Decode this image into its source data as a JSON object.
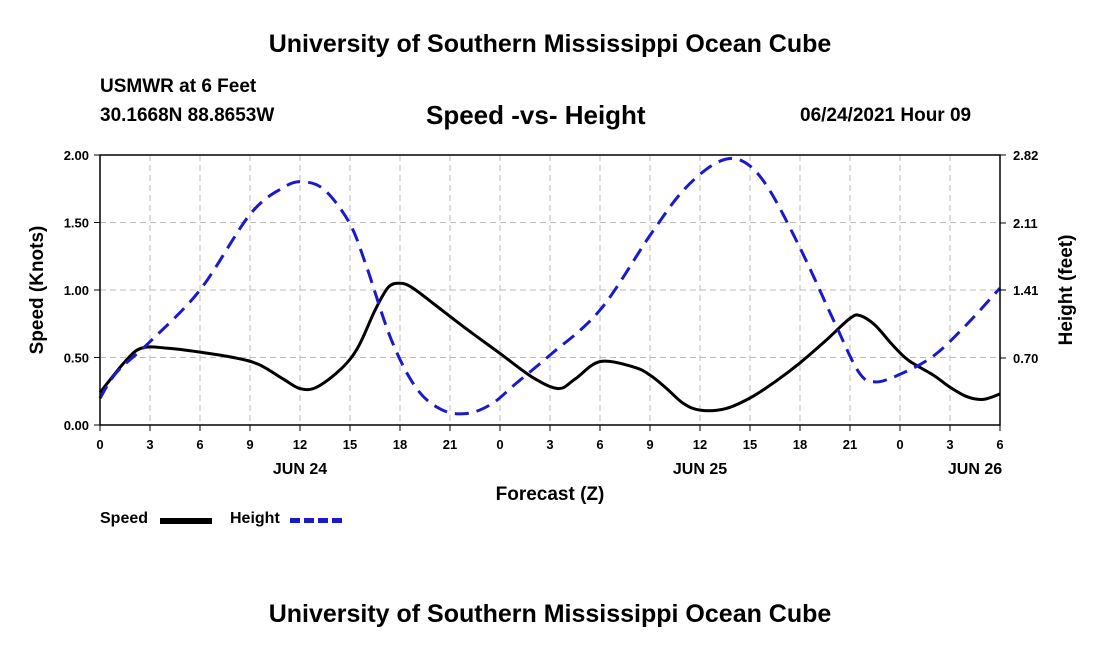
{
  "header": {
    "top_title": "University of Southern Mississippi Ocean Cube",
    "station": "USMWR at 6 Feet",
    "coords": "30.1668N  88.8653W",
    "chart_title": "Speed -vs- Height",
    "date_hour": "06/24/2021 Hour 09",
    "bottom_title": "University of Southern Mississippi Ocean Cube"
  },
  "legend": {
    "speed_label": "Speed",
    "height_label": "Height"
  },
  "colors": {
    "speed": "#000000",
    "height": "#1a1acc",
    "grid": "#bbbbbb"
  },
  "chart_data": {
    "type": "line",
    "title": "Speed -vs- Height",
    "xlabel": "Forecast (Z)",
    "ylabel": "Speed (Knots)",
    "ylabel_right": "Height (feet)",
    "x_range": [
      0,
      54
    ],
    "ylim": [
      0,
      2.0
    ],
    "ylim_right": [
      0,
      2.82
    ],
    "x_ticks": [
      0,
      3,
      6,
      9,
      12,
      15,
      18,
      21,
      24,
      27,
      30,
      33,
      36,
      39,
      42,
      45,
      48,
      51,
      54
    ],
    "x_tick_labels": [
      "0",
      "3",
      "6",
      "9",
      "12",
      "15",
      "18",
      "21",
      "0",
      "3",
      "6",
      "9",
      "12",
      "15",
      "18",
      "21",
      "0",
      "3",
      "6"
    ],
    "y_ticks": [
      0,
      0.5,
      1.0,
      1.5,
      2.0
    ],
    "y_tick_labels": [
      "0.00",
      "0.50",
      "1.00",
      "1.50",
      "2.00"
    ],
    "y_right_ticks": [
      0.7,
      1.41,
      2.11,
      2.82
    ],
    "y_right_tick_labels": [
      "0.70",
      "1.41",
      "2.11",
      "2.82"
    ],
    "day_labels": [
      {
        "x": 12,
        "label": "JUN 24"
      },
      {
        "x": 36,
        "label": "JUN 25"
      },
      {
        "x": 52.5,
        "label": "JUN 26"
      }
    ],
    "grid": true,
    "series": [
      {
        "name": "Speed",
        "axis": "left",
        "style": "solid",
        "x": [
          0,
          1.5,
          2.5,
          4,
          6,
          8,
          9.5,
          11,
          12,
          13,
          14.5,
          15.5,
          16.5,
          17.3,
          18,
          18.7,
          20,
          22,
          24,
          26,
          27.5,
          28.5,
          30,
          32,
          33,
          34,
          35,
          36,
          37.5,
          39,
          40.5,
          42,
          43.5,
          45,
          45.6,
          46.5,
          47.5,
          48.5,
          50,
          51,
          52,
          53,
          54
        ],
        "values": [
          0.24,
          0.47,
          0.57,
          0.57,
          0.54,
          0.5,
          0.45,
          0.34,
          0.27,
          0.28,
          0.42,
          0.58,
          0.85,
          1.02,
          1.05,
          1.02,
          0.9,
          0.71,
          0.53,
          0.35,
          0.27,
          0.34,
          0.47,
          0.43,
          0.37,
          0.27,
          0.16,
          0.11,
          0.12,
          0.2,
          0.32,
          0.46,
          0.62,
          0.79,
          0.81,
          0.74,
          0.6,
          0.48,
          0.37,
          0.28,
          0.21,
          0.19,
          0.23
        ]
      },
      {
        "name": "Height",
        "axis": "right",
        "style": "dashed",
        "x": [
          0,
          1,
          3,
          6,
          9,
          11,
          12.2,
          13.5,
          15,
          16,
          17.5,
          19,
          20.5,
          22,
          23.5,
          25,
          27,
          30,
          33,
          35,
          37,
          38.5,
          40,
          42,
          44,
          45.5,
          46.5,
          48,
          50,
          52,
          54
        ],
        "values": [
          0.28,
          0.55,
          0.87,
          1.41,
          2.2,
          2.48,
          2.54,
          2.45,
          2.1,
          1.65,
          0.88,
          0.38,
          0.16,
          0.12,
          0.22,
          0.44,
          0.73,
          1.2,
          1.98,
          2.45,
          2.74,
          2.76,
          2.5,
          1.85,
          1.1,
          0.56,
          0.45,
          0.53,
          0.72,
          1.05,
          1.43
        ]
      }
    ]
  }
}
